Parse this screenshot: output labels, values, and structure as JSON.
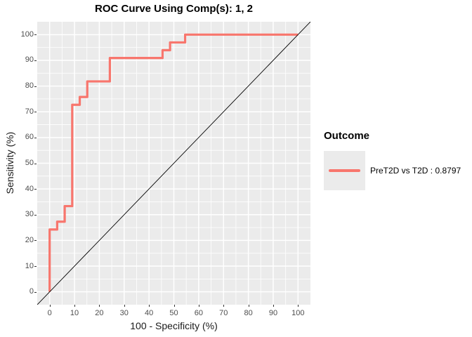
{
  "title": "ROC Curve Using Comp(s): 1, 2",
  "axes": {
    "x": {
      "label": "100 - Specificity (%)",
      "ticks": [
        0,
        10,
        20,
        30,
        40,
        50,
        60,
        70,
        80,
        90,
        100
      ]
    },
    "y": {
      "label": "Sensitivity (%)",
      "ticks": [
        0,
        10,
        20,
        30,
        40,
        50,
        60,
        70,
        80,
        90,
        100
      ]
    }
  },
  "legend": {
    "title": "Outcome",
    "entries": [
      {
        "label": "PreT2D vs T2D : 0.8797",
        "color": "#F8766D"
      }
    ]
  },
  "colors": {
    "curve": "#F8766D",
    "panel_background": "#EBEBEB",
    "gridline_major": "#FFFFFF",
    "gridline_minor": "#FFFFFF",
    "reference_line": "#000000",
    "tick_label": "#4D4D4D",
    "legend_key_background": "#EBEBEB"
  },
  "chart_data": {
    "type": "line",
    "subtype": "roc-step-curve",
    "title": "ROC Curve Using Comp(s): 1, 2",
    "xlabel": "100 - Specificity (%)",
    "ylabel": "Sensitivity (%)",
    "xlim": [
      -5,
      105
    ],
    "ylim": [
      -5,
      105
    ],
    "x_ticks": [
      0,
      10,
      20,
      30,
      40,
      50,
      60,
      70,
      80,
      90,
      100
    ],
    "y_ticks": [
      0,
      10,
      20,
      30,
      40,
      50,
      60,
      70,
      80,
      90,
      100
    ],
    "grid": true,
    "legend_position": "right",
    "auc": 0.8797,
    "series": [
      {
        "name": "PreT2D vs T2D : 0.8797",
        "role": "roc-curve",
        "color": "#F8766D",
        "x": [
          0,
          0,
          3.03,
          3.03,
          6.06,
          6.06,
          9.09,
          9.09,
          12.12,
          12.12,
          15.15,
          15.15,
          24.24,
          24.24,
          45.45,
          45.45,
          48.48,
          48.48,
          54.55,
          54.55,
          100
        ],
        "y": [
          0,
          24.24,
          24.24,
          27.27,
          27.27,
          33.33,
          33.33,
          72.73,
          72.73,
          75.76,
          75.76,
          81.82,
          81.82,
          90.91,
          90.91,
          93.94,
          93.94,
          96.97,
          96.97,
          100,
          100
        ]
      },
      {
        "name": "chance-diagonal",
        "role": "reference-line",
        "color": "#000000",
        "x": [
          -5,
          105
        ],
        "y": [
          -5,
          105
        ]
      }
    ]
  }
}
